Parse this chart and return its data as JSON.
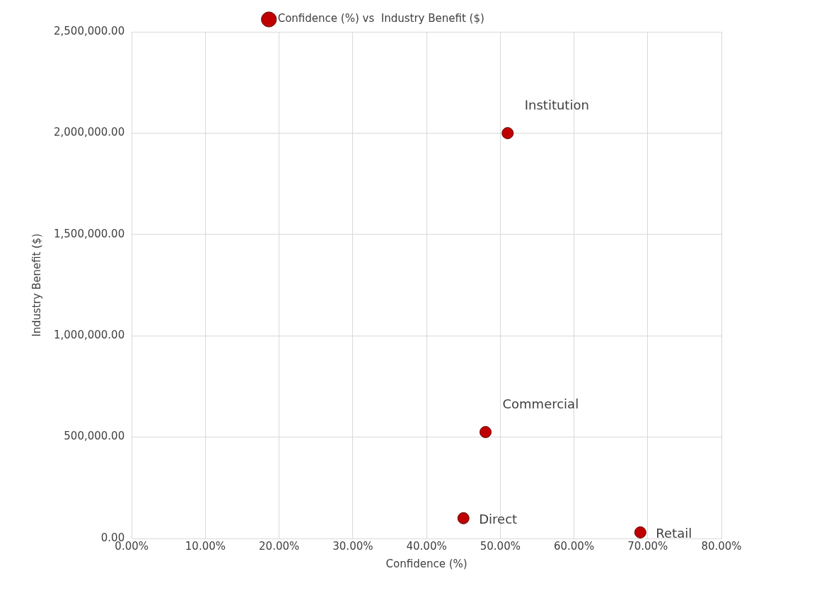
{
  "chart_data": {
    "type": "scatter",
    "xlabel": "Confidence (%)",
    "ylabel": "Industry Benefit ($)",
    "x": [
      51,
      48,
      45,
      69
    ],
    "series": [
      {
        "name": "Confidence (%) vs  Industry Benefit ($)",
        "color": "#c00000",
        "values": [
          2000000,
          525000,
          100000,
          30000
        ]
      }
    ],
    "xlim": [
      0,
      80
    ],
    "xticks": [
      {
        "value": 0,
        "label": "0.00%"
      },
      {
        "value": 10,
        "label": "10.00%"
      },
      {
        "value": 20,
        "label": "20.00%"
      },
      {
        "value": 30,
        "label": "30.00%"
      },
      {
        "value": 40,
        "label": "40.00%"
      },
      {
        "value": 50,
        "label": "50.00%"
      },
      {
        "value": 60,
        "label": "60.00%"
      },
      {
        "value": 70,
        "label": "70.00%"
      },
      {
        "value": 80,
        "label": "80.00%"
      }
    ],
    "ylim": [
      0,
      2500000
    ],
    "yticks": [
      {
        "value": 0,
        "label": "0.00"
      },
      {
        "value": 500000,
        "label": "500,000.00"
      },
      {
        "value": 1000000,
        "label": "1,000,000.00"
      },
      {
        "value": 1500000,
        "label": "1,500,000.00"
      },
      {
        "value": 2000000,
        "label": "2,000,000.00"
      },
      {
        "value": 2500000,
        "label": "2,500,000.00"
      }
    ],
    "annotations": [
      {
        "text": "Institution",
        "x": 51,
        "y": 2000000
      },
      {
        "text": "Commercial",
        "x": 48,
        "y": 525000
      },
      {
        "text": "Direct",
        "x": 45,
        "y": 100000
      },
      {
        "text": "Retail",
        "x": 69,
        "y": 30000
      }
    ],
    "grid": true,
    "legend": "top",
    "marker": "circle"
  }
}
